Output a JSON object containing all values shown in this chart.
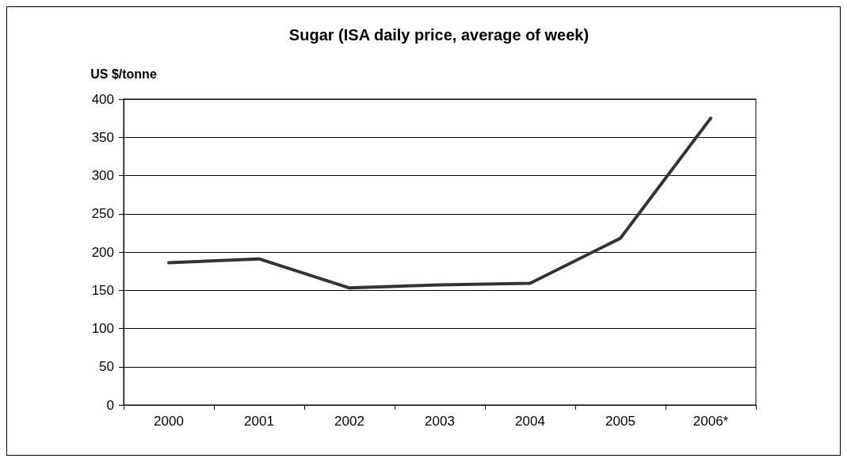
{
  "chart_data": {
    "type": "line",
    "title": "Sugar (ISA daily price, average of week)",
    "ylabel": "US $/tonne",
    "categories": [
      "2000",
      "2001",
      "2002",
      "2003",
      "2004",
      "2005",
      "2006*"
    ],
    "series": [
      {
        "color": "#333333",
        "values": [
          186,
          191,
          153,
          157,
          159,
          218,
          375
        ]
      }
    ],
    "ylim": [
      0,
      400
    ],
    "yticks": [
      0,
      50,
      100,
      150,
      200,
      250,
      300,
      350,
      400
    ],
    "grid": "y",
    "marker": "none",
    "line_style": "solid"
  }
}
